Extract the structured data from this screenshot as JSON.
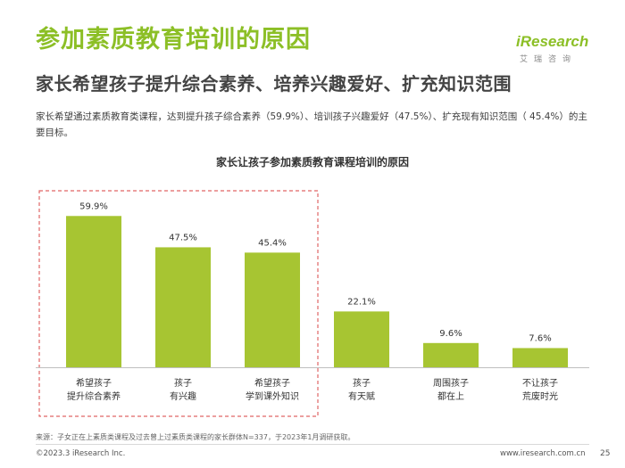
{
  "header": {
    "title": "参加素质教育培训的原因",
    "subtitle": "家长希望孩子提升综合素养、培养兴趣爱好、扩充知识范围",
    "description": "家长希望通过素质教育类课程，达到提升孩子综合素养（59.9%）、培训孩子兴趣爱好（47.5%）、扩充现有知识范围（ 45.4%）的主要目标。"
  },
  "logo": {
    "brand": "iResearch",
    "chinese": "艾瑞咨询"
  },
  "chart_data": {
    "type": "bar",
    "title": "家长让孩子参加素质教育课程培训的原因",
    "categories": [
      [
        "希望孩子",
        "提升综合素养"
      ],
      [
        "孩子",
        "有兴趣"
      ],
      [
        "希望孩子",
        "学到课外知识"
      ],
      [
        "孩子",
        "有天赋"
      ],
      [
        "周围孩子",
        "都在上"
      ],
      [
        "不让孩子",
        "荒废时光"
      ]
    ],
    "values": [
      59.9,
      47.5,
      45.4,
      22.1,
      9.6,
      7.6
    ],
    "value_labels": [
      "59.9%",
      "47.5%",
      "45.4%",
      "22.1%",
      "9.6%",
      "7.6%"
    ],
    "ylim": [
      0,
      60
    ],
    "highlight_first_n": 3,
    "colors": {
      "bar": "#a7c532",
      "highlight_box": "#e06666",
      "axis": "#bfbfbf"
    },
    "grid": false,
    "legend": "none"
  },
  "footer": {
    "source": "来源：子女正在上素质类课程及过去曾上过素质类课程的家长群体N=337，于2023年1月调研获取。",
    "copyright": "©2023.3 iResearch Inc.",
    "website": "www.iresearch.com.cn",
    "page": "25"
  }
}
